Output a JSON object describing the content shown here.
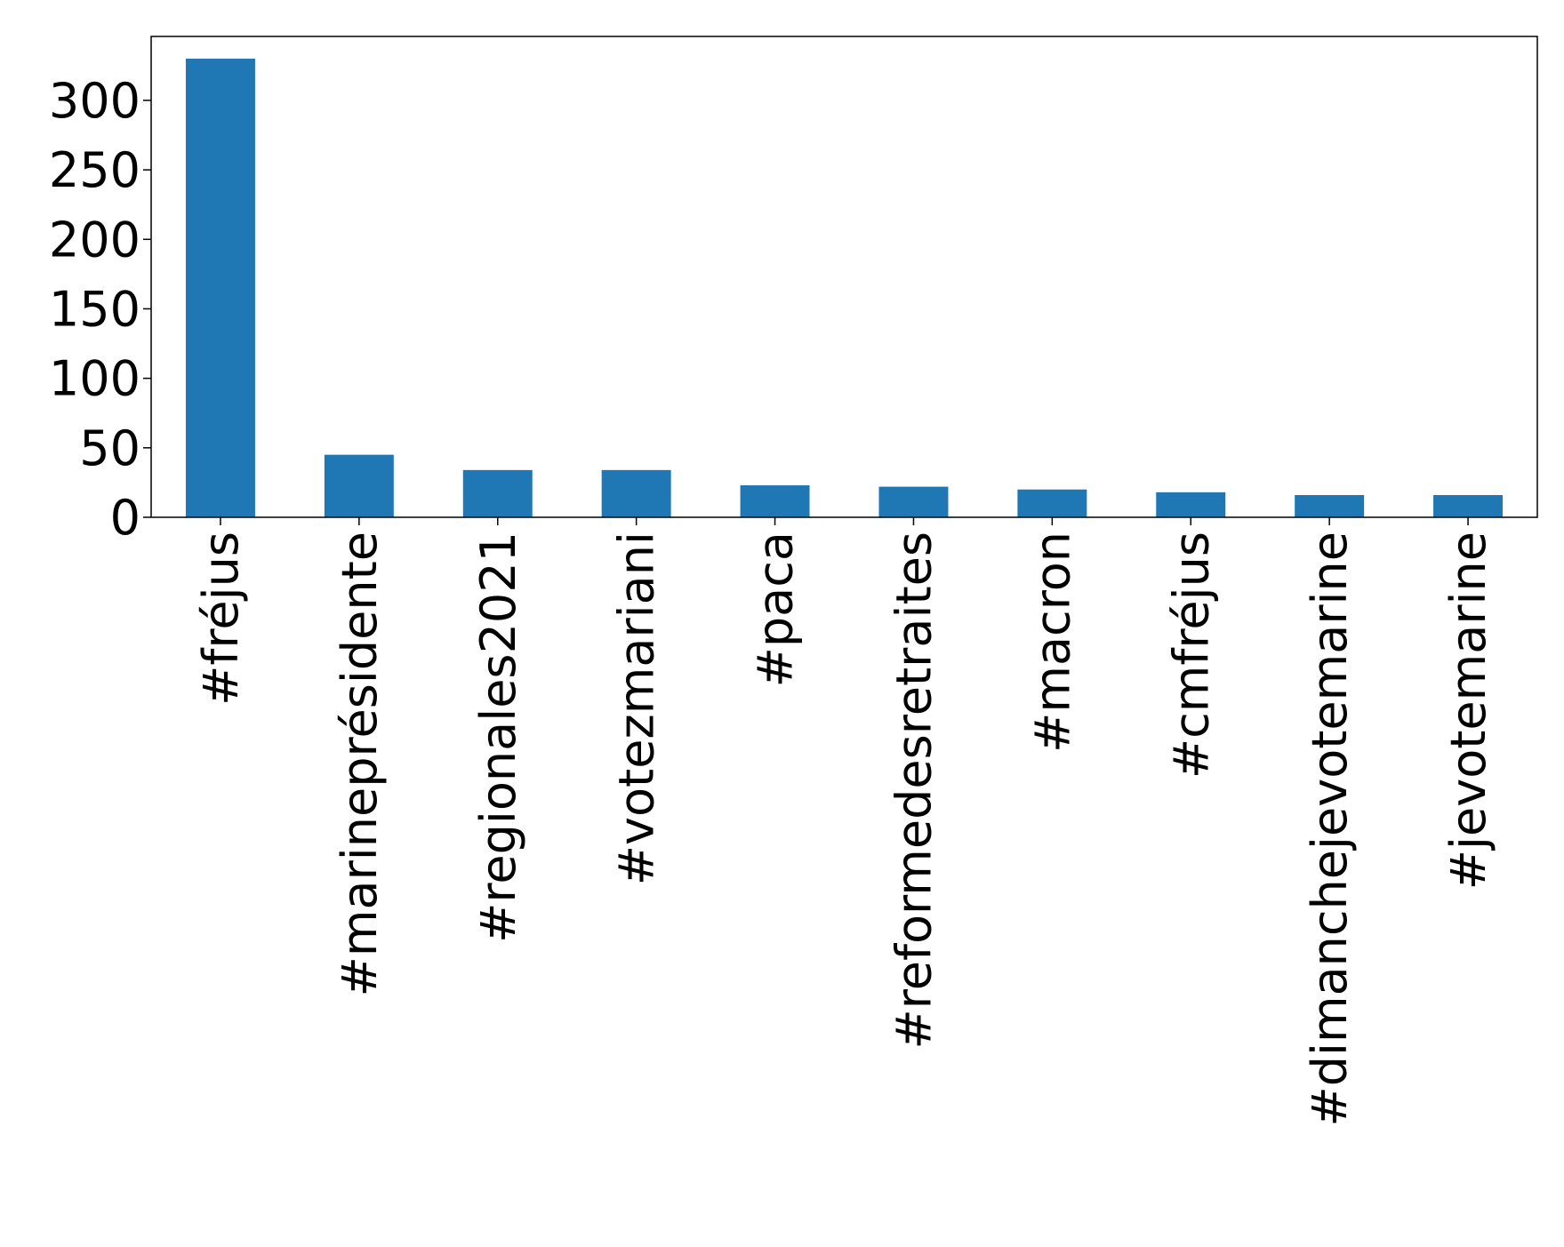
{
  "chart_data": {
    "type": "bar",
    "title": "",
    "xlabel": "",
    "ylabel": "",
    "categories": [
      "#fréjus",
      "#marineprésidente",
      "#regionales2021",
      "#votezmariani",
      "#paca",
      "#reformedesretraites",
      "#macron",
      "#cmfréjus",
      "#dimanchejevotemarine",
      "#jevotemarine"
    ],
    "values": [
      330,
      45,
      34,
      34,
      23,
      22,
      20,
      18,
      16,
      16
    ],
    "ylim": [
      0,
      346
    ],
    "yticks": [
      0,
      50,
      100,
      150,
      200,
      250,
      300
    ],
    "bar_color": "#1f77b4",
    "grid": false,
    "legend": "none"
  }
}
